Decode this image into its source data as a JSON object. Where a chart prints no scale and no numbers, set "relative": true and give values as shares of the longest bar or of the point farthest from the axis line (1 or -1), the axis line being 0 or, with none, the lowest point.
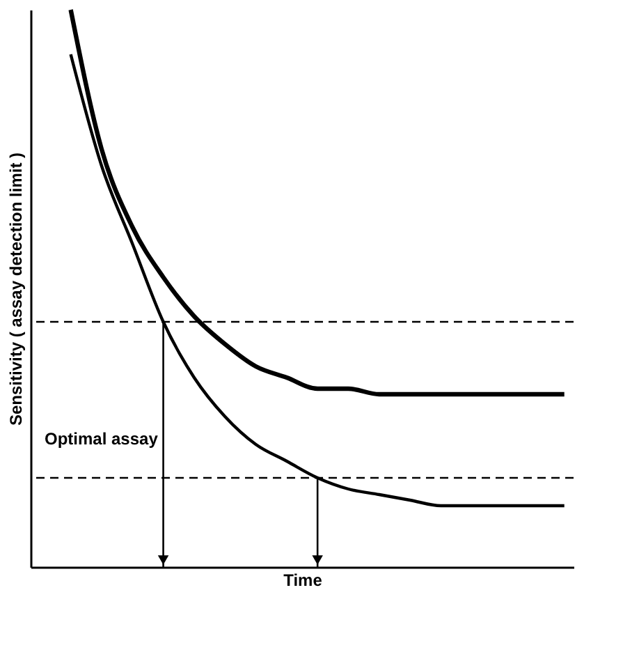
{
  "chart_data": {
    "type": "line",
    "relative": true,
    "xlabel": "Time",
    "ylabel": "Sensitivity ( assay detection limit )",
    "categories": [
      null,
      null,
      null,
      null,
      null,
      null,
      null,
      null,
      null,
      null,
      null,
      null,
      null,
      null,
      null,
      null,
      null,
      null
    ],
    "series": [
      {
        "color": "#000000",
        "values": [
          null,
          1,
          0.75,
          0.61,
          0.52,
          0.45,
          0.4,
          0.36,
          0.34,
          0.32,
          0.32,
          0.31,
          0.31,
          0.31,
          0.31,
          0.31,
          0.31,
          0.31
        ]
      },
      {
        "color": "#000000",
        "values": [
          null,
          0.92,
          0.72,
          0.58,
          0.44,
          0.34,
          0.27,
          0.22,
          0.19,
          0.16,
          0.14,
          0.13,
          0.12,
          0.11,
          0.11,
          0.11,
          0.11,
          0.11
        ]
      }
    ],
    "ref_lines": [
      {
        "axis": "y",
        "value": 0.44,
        "line_style": "dashed",
        "color": "#000000"
      },
      {
        "axis": "y",
        "value": 0.16,
        "line_style": "dashed",
        "color": "#000000"
      }
    ],
    "annotations": [
      "Optimal assay"
    ],
    "tick_labels": false,
    "grid": false,
    "marker": "none",
    "line_style": "solid"
  }
}
